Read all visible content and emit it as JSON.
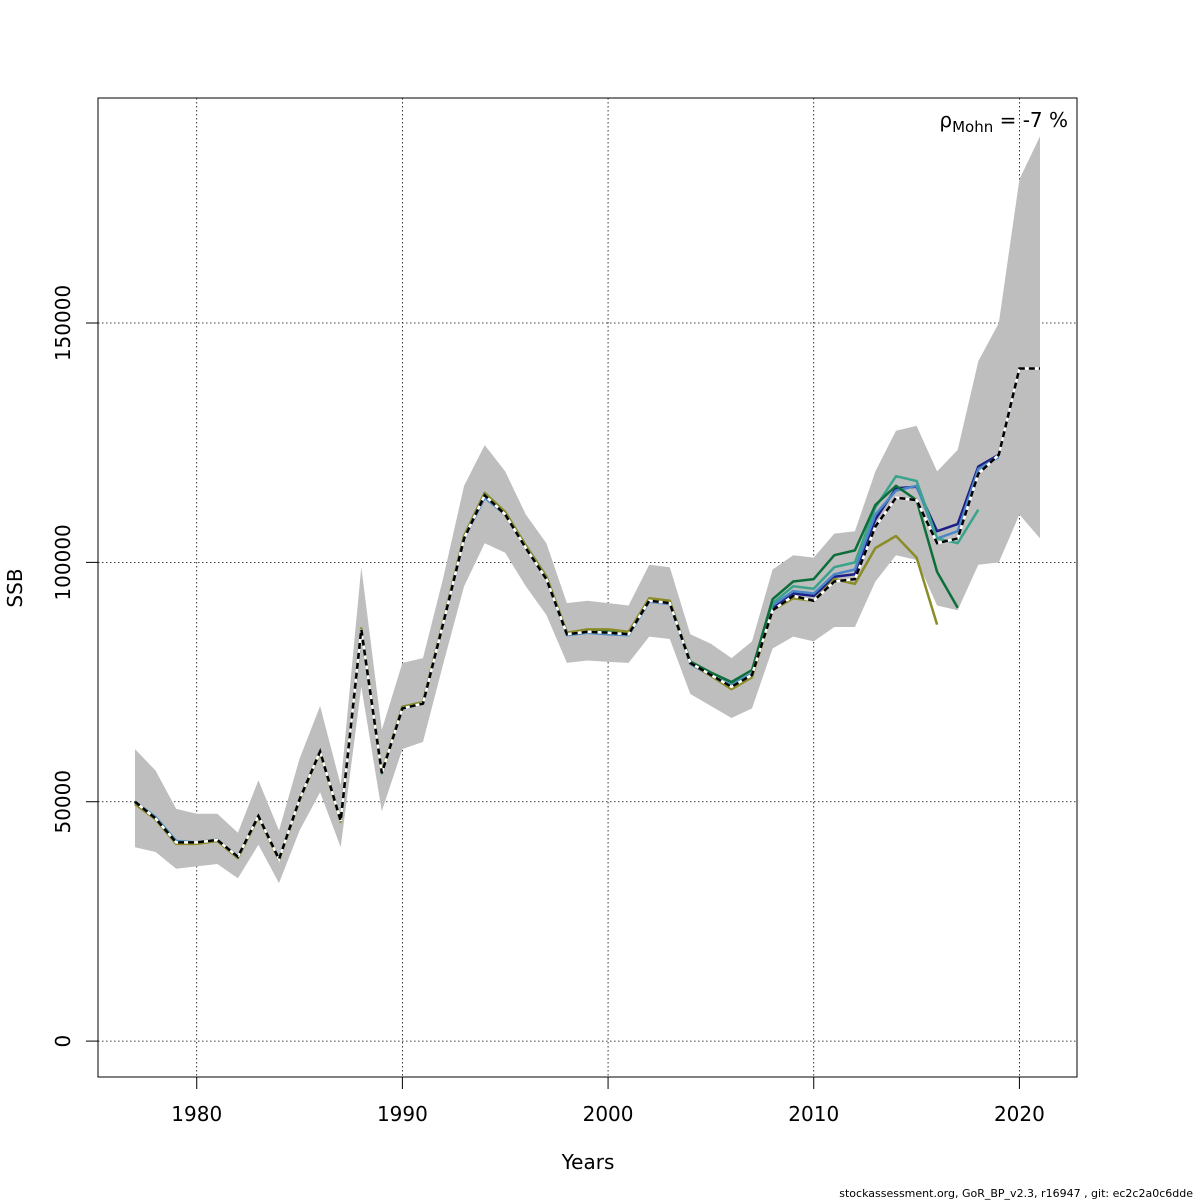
{
  "chart_data": {
    "type": "line",
    "title": "",
    "xlabel": "Years",
    "ylabel": "SSB",
    "xlim": [
      1975.2,
      2022.8
    ],
    "ylim": [
      -7500,
      197000
    ],
    "x_ticks": [
      1980,
      1990,
      2000,
      2010,
      2020
    ],
    "y_ticks": [
      0,
      50000,
      100000,
      150000
    ],
    "x_tick_labels": [
      "1980",
      "1990",
      "2000",
      "2010",
      "2020"
    ],
    "y_tick_labels": [
      "0",
      "50000",
      "100000",
      "150000"
    ],
    "grid": true,
    "legend": "none",
    "annotation": {
      "rho_symbol": "ρ",
      "rho_subscript": "Mohn",
      "rho_text": " = -7 %"
    },
    "confidence_band": {
      "color": "#bebebe",
      "x": [
        1977,
        1978,
        1979,
        1980,
        1981,
        1982,
        1983,
        1984,
        1985,
        1986,
        1987,
        1988,
        1989,
        1990,
        1991,
        1992,
        1993,
        1994,
        1995,
        1996,
        1997,
        1998,
        1999,
        2000,
        2001,
        2002,
        2003,
        2004,
        2005,
        2006,
        2007,
        2008,
        2009,
        2010,
        2011,
        2012,
        2013,
        2014,
        2015,
        2016,
        2017,
        2018,
        2019,
        2020,
        2021
      ],
      "lower": [
        40500,
        39500,
        36000,
        36500,
        37000,
        34000,
        41000,
        33000,
        44000,
        52000,
        40500,
        74000,
        48000,
        61000,
        62500,
        79000,
        95000,
        104000,
        102000,
        95000,
        89000,
        79000,
        79500,
        79200,
        79000,
        84500,
        84000,
        72500,
        70000,
        67500,
        69500,
        82000,
        84500,
        83500,
        86500,
        86500,
        96000,
        101500,
        100500,
        91000,
        90000,
        99500,
        100000,
        110000,
        105000
      ],
      "upper": [
        61000,
        56500,
        48500,
        47500,
        47500,
        43500,
        54500,
        44000,
        59000,
        70000,
        53500,
        99000,
        65000,
        79000,
        80000,
        97000,
        116000,
        124500,
        119000,
        110000,
        104000,
        91500,
        92000,
        91500,
        91000,
        99500,
        99000,
        85000,
        83000,
        80000,
        83500,
        98500,
        101500,
        101000,
        106000,
        106500,
        119000,
        127500,
        128500,
        119000,
        123500,
        142000,
        150000,
        180000,
        189000
      ]
    },
    "series": [
      {
        "color": "#000000",
        "dashed": true,
        "x": [
          1977,
          1978,
          1979,
          1980,
          1981,
          1982,
          1983,
          1984,
          1985,
          1986,
          1987,
          1988,
          1989,
          1990,
          1991,
          1992,
          1993,
          1994,
          1995,
          1996,
          1997,
          1998,
          1999,
          2000,
          2001,
          2002,
          2003,
          2004,
          2005,
          2006,
          2007,
          2008,
          2009,
          2010,
          2011,
          2012,
          2013,
          2014,
          2015,
          2016,
          2017,
          2018,
          2019,
          2020,
          2021
        ],
        "values": [
          50000,
          46500,
          41500,
          41500,
          42000,
          38500,
          47000,
          38000,
          50500,
          60500,
          46000,
          86000,
          56000,
          69500,
          70500,
          87500,
          105000,
          114000,
          110000,
          103000,
          96500,
          85000,
          85500,
          85300,
          85000,
          92000,
          91500,
          79000,
          76500,
          74000,
          76500,
          90000,
          93000,
          92000,
          96000,
          96500,
          107500,
          113500,
          113000,
          104000,
          105000,
          118500,
          122500,
          140500,
          140500
        ]
      },
      {
        "color": "#1d1f86",
        "dashed": false,
        "x": [
          1977,
          1978,
          1979,
          1980,
          1981,
          1982,
          1983,
          1984,
          1985,
          1986,
          1987,
          1988,
          1989,
          1990,
          1991,
          1992,
          1993,
          1994,
          1995,
          1996,
          1997,
          1998,
          1999,
          2000,
          2001,
          2002,
          2003,
          2004,
          2005,
          2006,
          2007,
          2008,
          2009,
          2010,
          2011,
          2012,
          2013,
          2014,
          2015,
          2016,
          2017,
          2018,
          2019,
          2020
        ],
        "values": [
          50000,
          46500,
          41500,
          41500,
          42000,
          38500,
          47000,
          38000,
          50500,
          60500,
          46000,
          86000,
          56000,
          69500,
          70500,
          87500,
          105000,
          114000,
          110000,
          103000,
          96500,
          85000,
          85500,
          85300,
          85000,
          92000,
          91500,
          79000,
          76500,
          74000,
          76500,
          90500,
          93500,
          93000,
          97000,
          97500,
          109000,
          115500,
          115800,
          106500,
          108000,
          120000,
          122500,
          140500
        ]
      },
      {
        "color": "#4b86c8",
        "dashed": false,
        "x": [
          1977,
          1978,
          1979,
          1980,
          1981,
          1982,
          1983,
          1984,
          1985,
          1986,
          1987,
          1988,
          1989,
          1990,
          1991,
          1992,
          1993,
          1994,
          1995,
          1996,
          1997,
          1998,
          1999,
          2000,
          2001,
          2002,
          2003,
          2004,
          2005,
          2006,
          2007,
          2008,
          2009,
          2010,
          2011,
          2012,
          2013,
          2014,
          2015,
          2016,
          2017,
          2018,
          2019
        ],
        "values": [
          50000,
          46800,
          41800,
          41500,
          42000,
          38500,
          47000,
          38000,
          50500,
          60500,
          46000,
          86000,
          56000,
          69500,
          70500,
          87500,
          105000,
          113500,
          110000,
          103000,
          96500,
          84800,
          85300,
          85000,
          84800,
          91800,
          91300,
          78800,
          76300,
          74500,
          76700,
          91000,
          94000,
          93500,
          97500,
          98500,
          110000,
          115000,
          116000,
          105000,
          106500,
          119500,
          122000
        ]
      },
      {
        "color": "#3aa38b",
        "dashed": false,
        "x": [
          1977,
          1978,
          1979,
          1980,
          1981,
          1982,
          1983,
          1984,
          1985,
          1986,
          1987,
          1988,
          1989,
          1990,
          1991,
          1992,
          1993,
          1994,
          1995,
          1996,
          1997,
          1998,
          1999,
          2000,
          2001,
          2002,
          2003,
          2004,
          2005,
          2006,
          2007,
          2008,
          2009,
          2010,
          2011,
          2012,
          2013,
          2014,
          2015,
          2016,
          2017,
          2018
        ],
        "values": [
          50000,
          46600,
          41600,
          41500,
          42000,
          38500,
          47000,
          38000,
          50500,
          60500,
          46000,
          86000,
          56000,
          69500,
          70500,
          87500,
          105000,
          114000,
          110000,
          103000,
          96500,
          85000,
          85500,
          85300,
          85000,
          92000,
          91500,
          79000,
          76500,
          74200,
          76500,
          91500,
          95000,
          94500,
          99000,
          100000,
          111500,
          118000,
          117000,
          105000,
          104000,
          111000
        ]
      },
      {
        "color": "#0d6e3a",
        "dashed": false,
        "x": [
          1977,
          1978,
          1979,
          1980,
          1981,
          1982,
          1983,
          1984,
          1985,
          1986,
          1987,
          1988,
          1989,
          1990,
          1991,
          1992,
          1993,
          1994,
          1995,
          1996,
          1997,
          1998,
          1999,
          2000,
          2001,
          2002,
          2003,
          2004,
          2005,
          2006,
          2007,
          2008,
          2009,
          2010,
          2011,
          2012,
          2013,
          2014,
          2015,
          2016,
          2017
        ],
        "values": [
          49800,
          46500,
          41500,
          41500,
          42000,
          38500,
          47000,
          38000,
          50500,
          60500,
          46000,
          86000,
          56000,
          69800,
          70800,
          87800,
          105500,
          114500,
          110500,
          103500,
          97000,
          85300,
          85800,
          85800,
          85300,
          92300,
          91800,
          79300,
          77000,
          75000,
          77500,
          92300,
          96000,
          96500,
          101500,
          102500,
          112000,
          116000,
          113000,
          98000,
          90500
        ]
      },
      {
        "color": "#8c8c27",
        "dashed": false,
        "x": [
          1977,
          1978,
          1979,
          1980,
          1981,
          1982,
          1983,
          1984,
          1985,
          1986,
          1987,
          1988,
          1989,
          1990,
          1991,
          1992,
          1993,
          1994,
          1995,
          1996,
          1997,
          1998,
          1999,
          2000,
          2001,
          2002,
          2003,
          2004,
          2005,
          2006,
          2007,
          2008,
          2009,
          2010,
          2011,
          2012,
          2013,
          2014,
          2015,
          2016
        ],
        "values": [
          49500,
          46300,
          41200,
          41200,
          41800,
          38200,
          46800,
          37800,
          50300,
          60300,
          45800,
          86200,
          56300,
          69800,
          70800,
          87800,
          105500,
          114500,
          110500,
          103500,
          97000,
          85300,
          86000,
          86000,
          85500,
          92500,
          92000,
          79000,
          76300,
          73500,
          76000,
          90000,
          92500,
          92000,
          96500,
          95500,
          103000,
          105500,
          101000,
          87000
        ]
      }
    ]
  },
  "footer": {
    "credit": "stockassessment.org, GoR_BP_v2.3, r16947 , git: ec2c2a0c6dde"
  }
}
